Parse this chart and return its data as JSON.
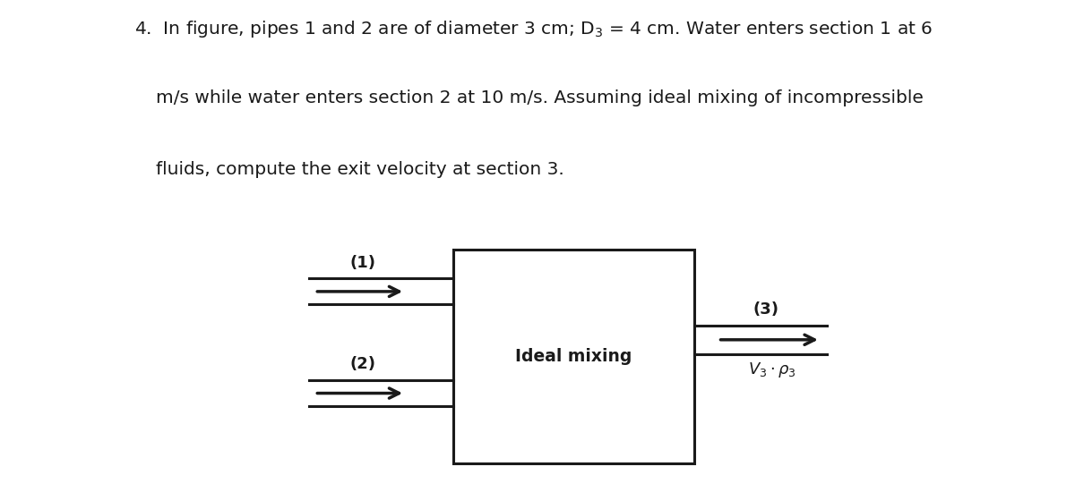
{
  "bg_color": "#ffffff",
  "diagram_bg": "#f5edd8",
  "line_color": "#1a1a1a",
  "text_color": "#1a1a1a",
  "ideal_mixing_label": "Ideal mixing",
  "label1": "(1)",
  "label2": "(2)",
  "label3": "(3)",
  "v3_label": "V_3 \\cdot \\rho_3",
  "line_width": 2.2,
  "arrow_lw": 2.5,
  "arrow_ms": 20
}
